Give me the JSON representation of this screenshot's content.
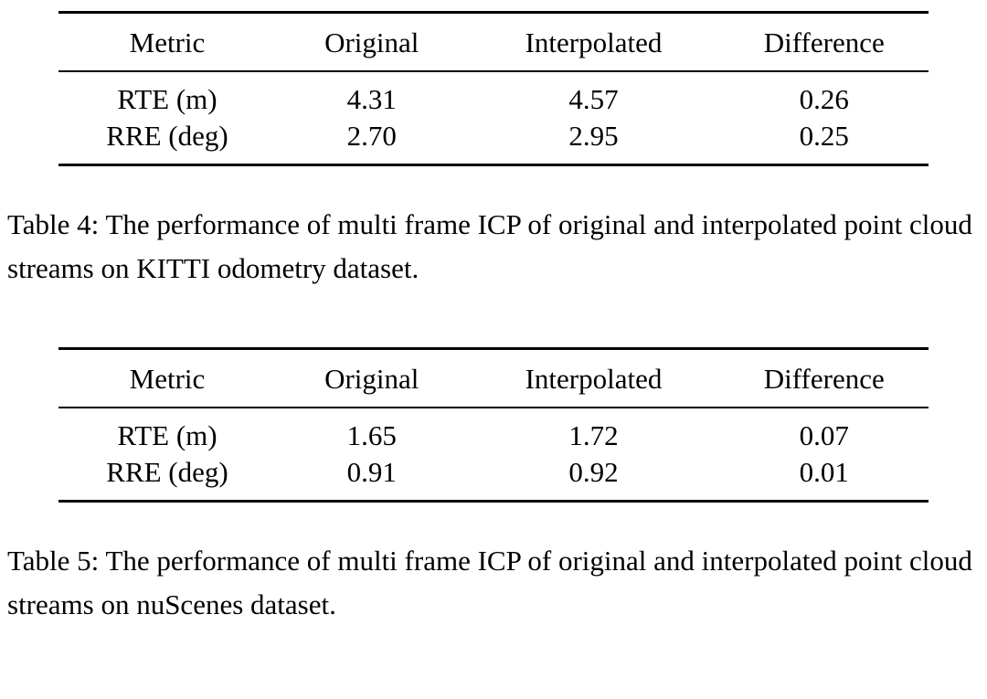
{
  "tables": [
    {
      "headers": [
        "Metric",
        "Original",
        "Interpolated",
        "Difference"
      ],
      "rows": [
        [
          "RTE (m)",
          "4.31",
          "4.57",
          "0.26"
        ],
        [
          "RRE (deg)",
          "2.70",
          "2.95",
          "0.25"
        ]
      ],
      "caption": "Table 4: The performance of multi frame ICP of original and interpolated point cloud streams on KITTI odometry dataset."
    },
    {
      "headers": [
        "Metric",
        "Original",
        "Interpolated",
        "Difference"
      ],
      "rows": [
        [
          "RTE (m)",
          "1.65",
          "1.72",
          "0.07"
        ],
        [
          "RRE (deg)",
          "0.91",
          "0.92",
          "0.01"
        ]
      ],
      "caption": "Table 5: The performance of multi frame ICP of original and interpolated point cloud streams on nuScenes dataset."
    }
  ]
}
